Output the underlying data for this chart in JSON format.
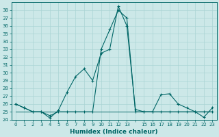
{
  "title": "",
  "xlabel": "Humidex (Indice chaleur)",
  "bg_color": "#cce8e8",
  "grid_color": "#aad4d4",
  "line_color": "#006666",
  "xlim": [
    -0.5,
    23.5
  ],
  "ylim": [
    24,
    39
  ],
  "yticks": [
    24,
    25,
    26,
    27,
    28,
    29,
    30,
    31,
    32,
    33,
    34,
    35,
    36,
    37,
    38
  ],
  "xtick_labels": [
    "0",
    "1",
    "2",
    "3",
    "4",
    "5",
    "6",
    "7",
    "8",
    "9",
    "10",
    "11",
    "12",
    "13",
    "",
    "15",
    "16",
    "17",
    "18",
    "19",
    "20",
    "21",
    "22",
    "23"
  ],
  "series_main_x": [
    0,
    1,
    2,
    3,
    4,
    5,
    6,
    7,
    8,
    9,
    10,
    11,
    12,
    13,
    14,
    15,
    16,
    17,
    18,
    19,
    20,
    21,
    22,
    23
  ],
  "series_main_y": [
    26.0,
    25.5,
    25.0,
    25.0,
    24.2,
    25.2,
    27.5,
    29.5,
    30.5,
    29.0,
    32.5,
    33.0,
    38.5,
    36.0,
    25.3,
    25.0,
    25.0,
    27.2,
    27.3,
    26.0,
    25.5,
    25.0,
    24.3,
    25.5
  ],
  "series_alt_x": [
    0,
    1,
    2,
    3,
    4,
    5,
    6,
    7,
    8,
    9,
    10,
    11,
    12,
    13,
    14,
    15,
    16,
    17,
    18,
    19,
    20,
    21,
    22,
    23
  ],
  "series_alt_y": [
    26.0,
    25.5,
    25.0,
    25.0,
    24.5,
    25.0,
    25.0,
    25.0,
    25.0,
    25.0,
    33.0,
    35.5,
    38.0,
    37.0,
    25.0,
    25.0,
    25.0,
    25.0,
    25.0,
    25.0,
    25.0,
    25.0,
    25.0,
    25.0
  ],
  "series_flat_x": [
    0,
    1,
    2,
    3,
    4,
    5,
    6,
    7,
    8,
    9,
    10,
    11,
    12,
    13,
    14,
    15,
    16,
    17,
    18,
    19,
    20,
    21,
    22,
    23
  ],
  "series_flat_y": [
    25.0,
    25.0,
    25.0,
    25.0,
    25.0,
    25.0,
    25.0,
    25.0,
    25.0,
    25.0,
    25.0,
    25.0,
    25.0,
    25.0,
    25.0,
    25.0,
    25.0,
    25.0,
    25.0,
    25.0,
    25.0,
    25.0,
    25.0,
    25.0
  ],
  "fontsize_tick": 5.0,
  "fontsize_xlabel": 6.5
}
